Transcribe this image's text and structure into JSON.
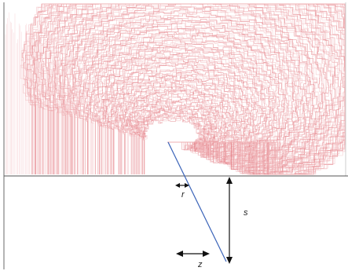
{
  "labels": {
    "r": "r",
    "s": "s",
    "z": "z"
  },
  "colors": {
    "paths": "#e4848b",
    "paths_light": "#f2b9bd",
    "frame": "#6a6a6a",
    "baseline": "#555555",
    "slant_line": "#3a63b8",
    "arrows": "#111111",
    "text": "#222222"
  }
}
